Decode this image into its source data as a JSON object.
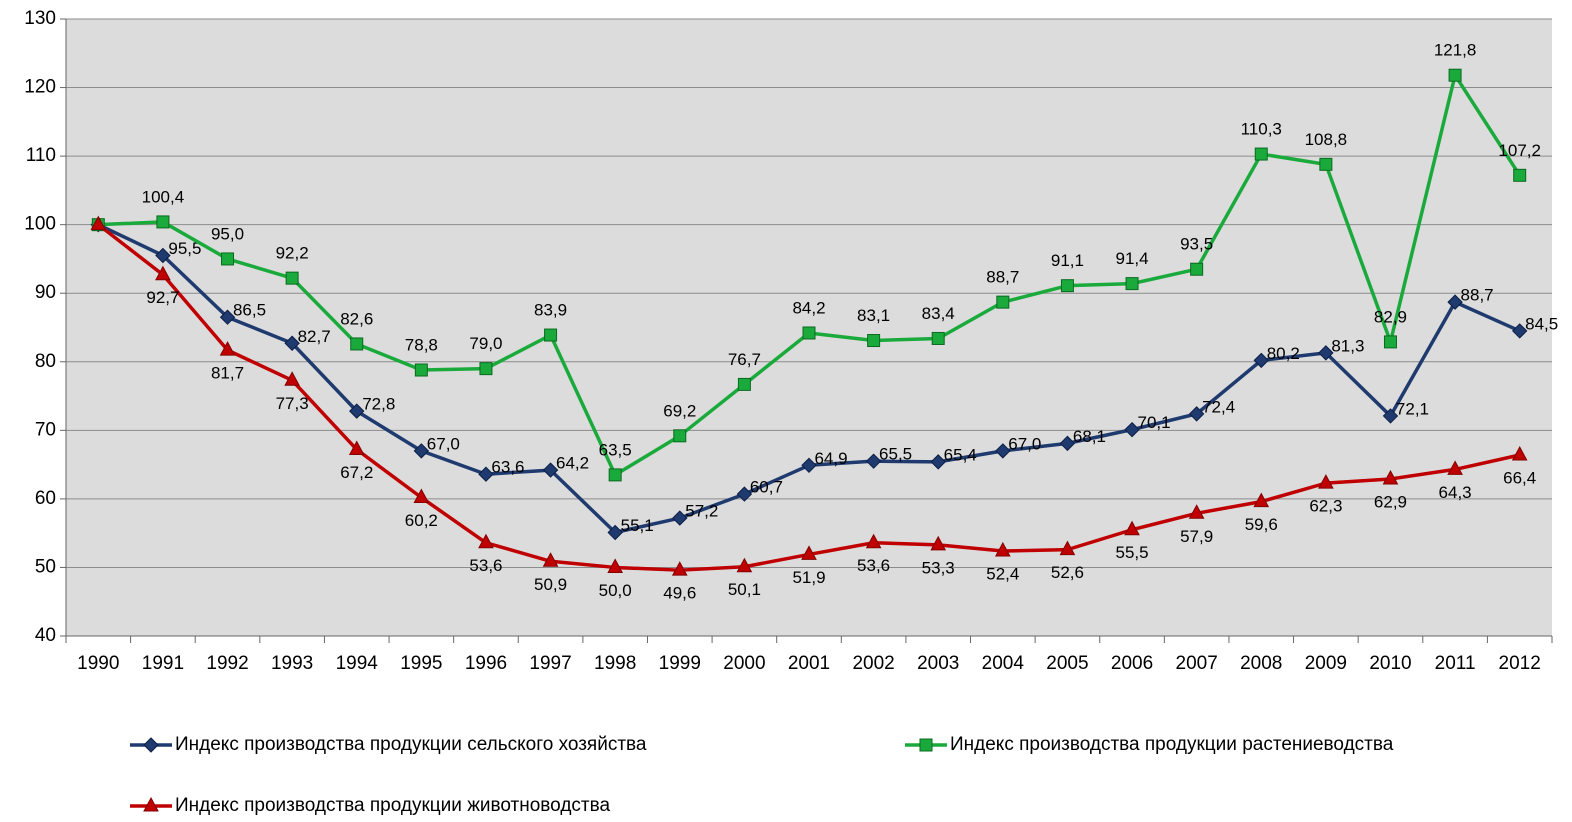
{
  "chart_data": {
    "type": "line",
    "categories": [
      "1990",
      "1991",
      "1992",
      "1993",
      "1994",
      "1995",
      "1996",
      "1997",
      "1998",
      "1999",
      "2000",
      "2001",
      "2002",
      "2003",
      "2004",
      "2005",
      "2006",
      "2007",
      "2008",
      "2009",
      "2010",
      "2011",
      "2012"
    ],
    "series": [
      {
        "name": "Индекс производства продукции сельского хозяйства",
        "color": "#1f3a6e",
        "marker": "diamond",
        "values": [
          100,
          95.5,
          86.5,
          82.7,
          72.8,
          67.0,
          63.6,
          64.2,
          55.1,
          57.2,
          60.7,
          64.9,
          65.5,
          65.4,
          67.0,
          68.1,
          70.1,
          72.4,
          80.2,
          81.3,
          72.1,
          88.7,
          84.5
        ],
        "value_labels": [
          null,
          "95,5",
          "86,5",
          "82,7",
          "72,8",
          "67,0",
          "63,6",
          "64,2",
          "55,1",
          "57,2",
          "60,7",
          "64,9",
          "65,5",
          "65,4",
          "67,0",
          "68,1",
          "70,1",
          "72,4",
          "80,2",
          "81,3",
          "72,1",
          "88,7",
          "84,5"
        ]
      },
      {
        "name": "Индекс производства продукции растениеводства",
        "color": "#1aaa3c",
        "marker": "square",
        "values": [
          100,
          100.4,
          95.0,
          92.2,
          82.6,
          78.8,
          79.0,
          83.9,
          63.5,
          69.2,
          76.7,
          84.2,
          83.1,
          83.4,
          88.7,
          91.1,
          91.4,
          93.5,
          110.3,
          108.8,
          82.9,
          121.8,
          107.2
        ],
        "value_labels": [
          null,
          "100,4",
          "95,0",
          "92,2",
          "82,6",
          "78,8",
          "79,0",
          "83,9",
          "63,5",
          "69,2",
          "76,7",
          "84,2",
          "83,1",
          "83,4",
          "88,7",
          "91,1",
          "91,4",
          "93,5",
          "110,3",
          "108,8",
          "82,9",
          "121,8",
          "107,2"
        ]
      },
      {
        "name": "Индекс производства продукции животноводства",
        "color": "#c00000",
        "marker": "triangle",
        "values": [
          100,
          92.7,
          81.7,
          77.3,
          67.2,
          60.2,
          53.6,
          50.9,
          50.0,
          49.6,
          50.1,
          51.9,
          53.6,
          53.3,
          52.4,
          52.6,
          55.5,
          57.9,
          59.6,
          62.3,
          62.9,
          64.3,
          66.4
        ],
        "value_labels": [
          null,
          "92,7",
          "81,7",
          "77,3",
          "67,2",
          "60,2",
          "53,6",
          "50,9",
          "50,0",
          "49,6",
          "50,1",
          "51,9",
          "53,6",
          "53,3",
          "52,4",
          "52,6",
          "55,5",
          "57,9",
          "59,6",
          "62,3",
          "62,9",
          "64,3",
          "66,4"
        ]
      }
    ],
    "ylim": [
      40,
      130
    ],
    "yticks": [
      40,
      50,
      60,
      70,
      80,
      90,
      100,
      110,
      120,
      130
    ],
    "grid": true
  }
}
